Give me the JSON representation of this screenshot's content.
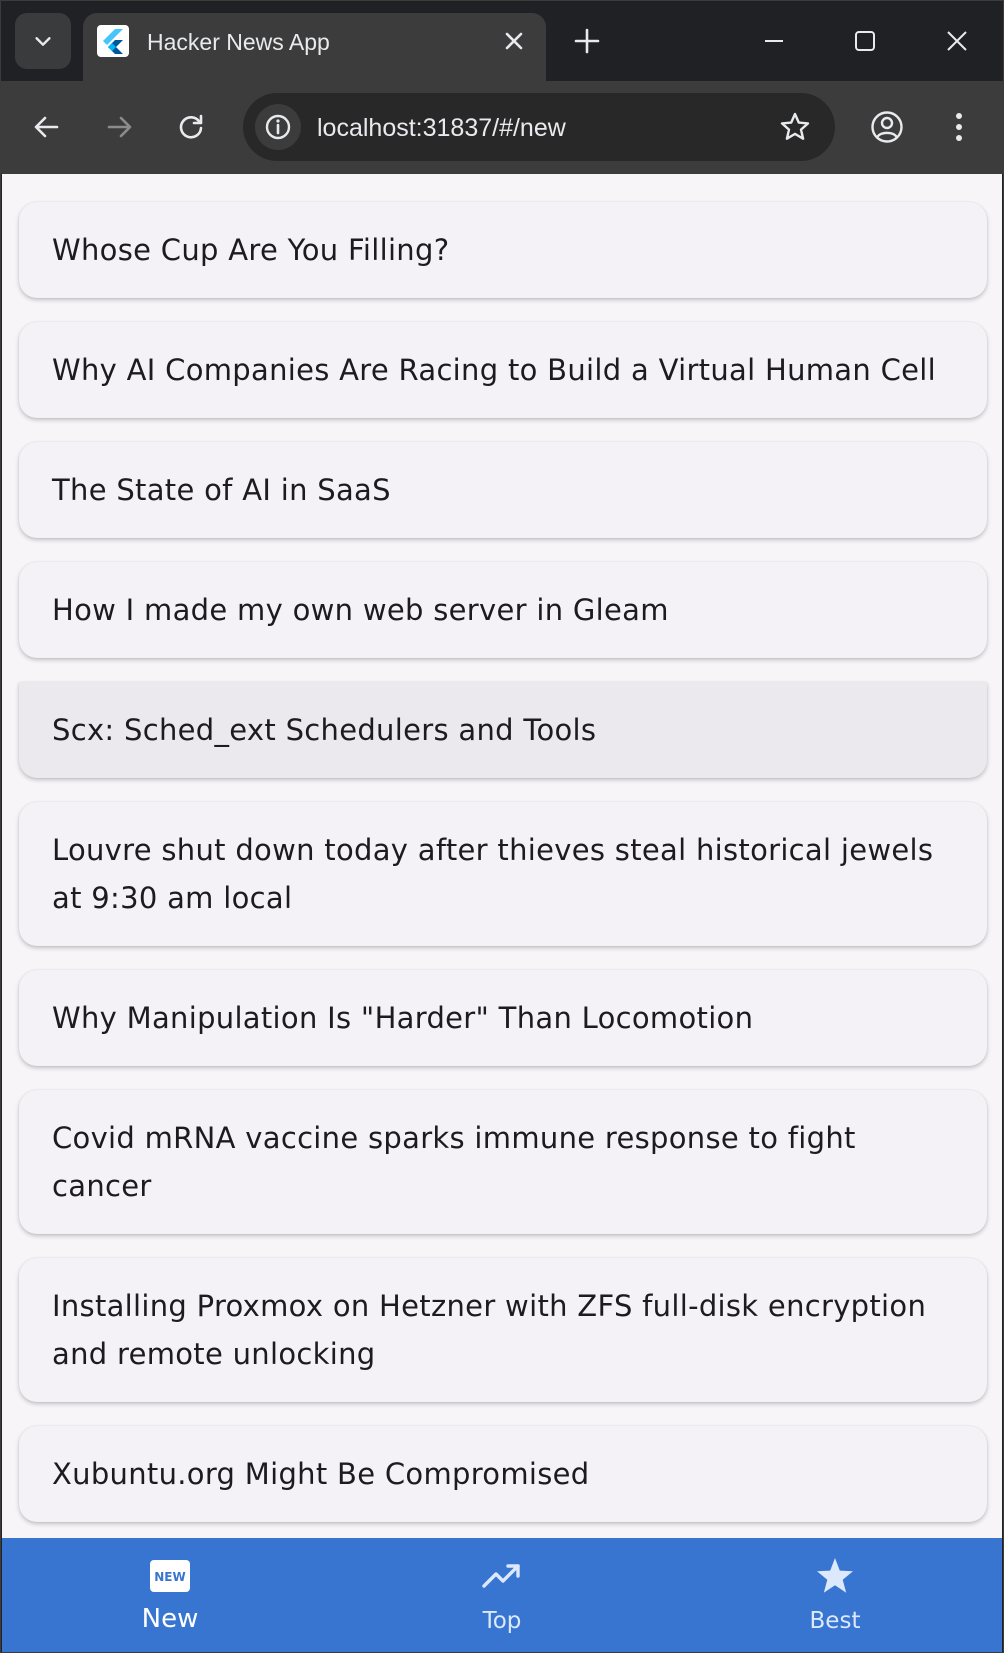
{
  "browser": {
    "tab_title": "Hacker News App",
    "url": "localhost:31837/#/new",
    "tab_close_icon": "close-icon",
    "new_tab_icon": "plus-icon"
  },
  "stories": [
    {
      "title": "Whose Cup Are You Filling?"
    },
    {
      "title": "Why AI Companies Are Racing to Build a Virtual Human Cell"
    },
    {
      "title": "The State of AI in SaaS"
    },
    {
      "title": "How I made my own web server in Gleam"
    },
    {
      "title": "Scx: Sched_ext Schedulers and Tools"
    },
    {
      "title": "Louvre shut down today after thieves steal historical jewels at 9:30 am local"
    },
    {
      "title": "Why Manipulation Is \"Harder\" Than Locomotion"
    },
    {
      "title": "Covid mRNA vaccine sparks immune response to fight cancer"
    },
    {
      "title": "Installing Proxmox on Hetzner with ZFS full-disk encryption and remote unlocking"
    },
    {
      "title": "Xubuntu.org Might Be Compromised"
    }
  ],
  "bottom_nav": {
    "items": [
      {
        "label": "New",
        "icon": "new-badge-icon",
        "active": true
      },
      {
        "label": "Top",
        "icon": "trending-up-icon",
        "active": false
      },
      {
        "label": "Best",
        "icon": "star-icon",
        "active": false
      }
    ],
    "background": "#3875d1"
  },
  "colors": {
    "page_bg": "#f7f5f8",
    "card_bg": "#f5f2f7",
    "card_hover_bg": "#ebe8ee",
    "text": "#1c1b1f"
  }
}
